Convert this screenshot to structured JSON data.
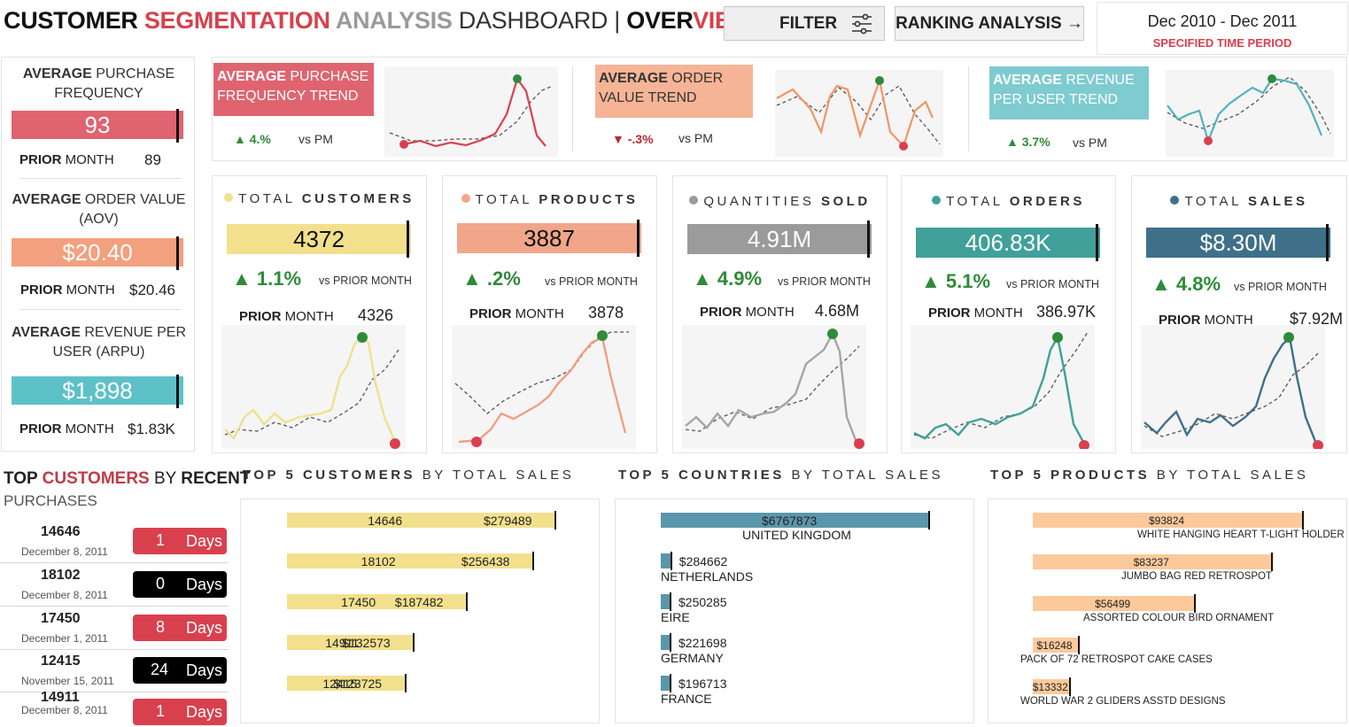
{
  "header": {
    "title_parts": [
      "CUSTOMER ",
      "SEGMENTATION ",
      "ANALYSIS ",
      "DASHBOARD | ",
      "OVER",
      "VIEW"
    ],
    "filter_label": "FILTER",
    "ranking_label": "RANKING ANALYSIS →",
    "period_range": "Dec 2010 - Dec 2011",
    "period_label": "SPECIFIED TIME PERIOD"
  },
  "averages": [
    {
      "title_bold": "AVERAGE",
      "title_rest": " PURCHASE FREQUENCY",
      "value": "93",
      "prior_label_bold": "PRIOR",
      "prior_label_rest": " MONTH",
      "prior_value": "89",
      "color": "#e06370"
    },
    {
      "title_bold": "AVERAGE",
      "title_rest": " ORDER VALUE (AOV)",
      "value": "$20.40",
      "prior_label_bold": "PRIOR",
      "prior_label_rest": " MONTH",
      "prior_value": "$20.46",
      "color": "#f3a07f"
    },
    {
      "title_bold": "AVERAGE",
      "title_rest": " REVENUE PER USER (ARPU)",
      "value": "$1,898",
      "prior_label_bold": "PRIOR",
      "prior_label_rest": " MONTH",
      "prior_value": "$1.83K",
      "color": "#5ec1c8"
    }
  ],
  "trends": [
    {
      "title_bold": "AVERAGE",
      "title_rest": " PURCHASE FREQUENCY TREND",
      "change": "▲ 4.%",
      "direction": "up",
      "vs": "vs PM",
      "color": "#e06370"
    },
    {
      "title_bold": "AVERAGE",
      "title_rest": " ORDER VALUE TREND",
      "change": "▼ -.3%",
      "direction": "down",
      "vs": "vs PM",
      "color": "#f6b496"
    },
    {
      "title_bold": "AVERAGE",
      "title_rest": " REVENUE PER USER TREND",
      "change": "▲ 3.7%",
      "direction": "up",
      "vs": "vs PM",
      "color": "#7ecbd0"
    }
  ],
  "kpis": [
    {
      "title_light": "TOTAL ",
      "title_bold": "CUSTOMERS",
      "value": "4372",
      "change": "▲ 1.1%",
      "vs": "vs PRIOR MONTH",
      "prior_bold": "PRIOR",
      "prior_rest": " MONTH",
      "prior_value": "4326",
      "color": "#f3e08d",
      "text_color": "#111",
      "dot": "#f3e08d"
    },
    {
      "title_light": "TOTAL ",
      "title_bold": "PRODUCTS",
      "value": "3887",
      "change": "▲ .2%",
      "vs": "vs PRIOR MONTH",
      "prior_bold": "PRIOR",
      "prior_rest": " MONTH",
      "prior_value": "3878",
      "color": "#f1a68a",
      "text_color": "#111",
      "dot": "#f1a68a"
    },
    {
      "title_light": "QUANTITIES ",
      "title_bold": "SOLD",
      "value": "4.91M",
      "change": "▲ 4.9%",
      "vs": "vs PRIOR MONTH",
      "prior_bold": "PRIOR",
      "prior_rest": " MONTH",
      "prior_value": "4.68M",
      "color": "#9b9b9b",
      "text_color": "#fff",
      "dot": "#9b9b9b"
    },
    {
      "title_light": "TOTAL ",
      "title_bold": "ORDERS",
      "value": "406.83K",
      "change": "▲ 5.1%",
      "vs": "vs PRIOR MONTH",
      "prior_bold": "PRIOR",
      "prior_rest": " MONTH",
      "prior_value": "386.97K",
      "color": "#3fa19a",
      "text_color": "#fff",
      "dot": "#3fa19a"
    },
    {
      "title_light": "TOTAL ",
      "title_bold": "SALES",
      "value": "$8.30M",
      "change": "▲ 4.8%",
      "vs": "vs PRIOR MONTH",
      "prior_bold": "PRIOR",
      "prior_rest": " MONTH",
      "prior_value": "$7.92M",
      "color": "#3f7089",
      "text_color": "#fff",
      "dot": "#3f7089"
    }
  ],
  "recent": {
    "title_parts": [
      "TOP ",
      "CUSTOMERS",
      " BY ",
      "RECENT"
    ],
    "subtitle": "PURCHASES",
    "rows": [
      {
        "id": "14646",
        "date": "December 8, 2011",
        "days": "1",
        "unit": "Days",
        "badge": "#d9404e"
      },
      {
        "id": "18102",
        "date": "December 8, 2011",
        "days": "0",
        "unit": "Days",
        "badge": "#000000"
      },
      {
        "id": "17450",
        "date": "December 1, 2011",
        "days": "8",
        "unit": "Days",
        "badge": "#d9404e"
      },
      {
        "id": "12415",
        "date": "November 15, 2011",
        "days": "24",
        "unit": "Days",
        "badge": "#000000"
      },
      {
        "id": "14911",
        "date": "December 8, 2011",
        "days": "1",
        "unit": "Days",
        "badge": "#d9404e"
      }
    ]
  },
  "top_heads": {
    "customers": {
      "bold": "TOP 5 CUSTOMERS",
      "rest": " BY TOTAL SALES"
    },
    "countries": {
      "bold": "TOP 5 COUNTRIES",
      "rest": " BY TOTAL SALES"
    },
    "products": {
      "bold": "TOP 5 PRODUCTS",
      "rest": " BY TOTAL SALES"
    }
  },
  "chart_data": [
    {
      "type": "bar",
      "title": "TOP 5 CUSTOMERS BY TOTAL SALES",
      "categories": [
        "14646",
        "18102",
        "17450",
        "14911",
        "12415"
      ],
      "values": [
        279489,
        256438,
        187482,
        132573,
        123725
      ],
      "labels": [
        "$279489",
        "$256438",
        "$187482",
        "$132573",
        "$123725"
      ],
      "color": "#f3e08d"
    },
    {
      "type": "bar",
      "title": "TOP 5 COUNTRIES BY TOTAL SALES",
      "categories": [
        "UNITED KINGDOM",
        "NETHERLANDS",
        "EIRE",
        "GERMANY",
        "FRANCE"
      ],
      "values": [
        6767873,
        284662,
        250285,
        221698,
        196713
      ],
      "labels": [
        "$6767873",
        "$284662",
        "$250285",
        "$221698",
        "$196713"
      ],
      "color": "#5a97aa"
    },
    {
      "type": "bar",
      "title": "TOP 5 PRODUCTS BY TOTAL SALES",
      "categories": [
        "WHITE HANGING HEART T-LIGHT HOLDER",
        "JUMBO BAG RED RETROSPOT",
        "ASSORTED COLOUR BIRD ORNAMENT",
        "PACK OF 72 RETROSPOT CAKE CASES",
        "WORLD WAR 2 GLIDERS ASSTD DESIGNS"
      ],
      "values": [
        93824,
        83237,
        56499,
        16248,
        13332
      ],
      "labels": [
        "$93824",
        "$83237",
        "$56499",
        "$16248",
        "$13332"
      ],
      "color": "#fcc99b"
    }
  ]
}
